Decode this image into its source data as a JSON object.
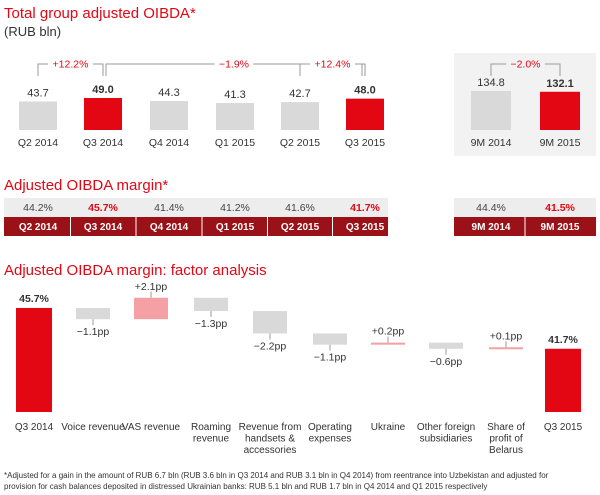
{
  "colors": {
    "accent": "#e30613",
    "grey": "#d9d9d9",
    "dark_red": "#9b1118",
    "pink": "#f4a0a4",
    "strip": "#ededed"
  },
  "chart_data": [
    {
      "type": "bar",
      "title": "Total group adjusted OIBDA*",
      "subtitle": "(RUB bln)",
      "categories": [
        "Q2 2014",
        "Q3 2014",
        "Q4 2014",
        "Q1 2015",
        "Q2 2015",
        "Q3 2015"
      ],
      "values": [
        43.7,
        49.0,
        44.3,
        41.3,
        42.7,
        48.0
      ],
      "highlight": [
        "Q3 2014",
        "Q3 2015"
      ],
      "changes": [
        {
          "from": "Q2 2014",
          "to": "Q3 2014",
          "label": "+12.2%"
        },
        {
          "from": "Q3 2014",
          "to": "Q3 2015",
          "label": "−1.9%"
        },
        {
          "from": "Q2 2015",
          "to": "Q3 2015",
          "label": "+12.4%"
        }
      ],
      "nine_month": {
        "categories": [
          "9M 2014",
          "9M 2015"
        ],
        "values": [
          134.8,
          132.1
        ],
        "change": "−2.0%"
      }
    },
    {
      "type": "table",
      "title": "Adjusted OIBDA margin*",
      "categories": [
        "Q2 2014",
        "Q3 2014",
        "Q4 2014",
        "Q1 2015",
        "Q2 2015",
        "Q3 2015"
      ],
      "values": [
        "44.2%",
        "45.7%",
        "41.4%",
        "41.2%",
        "41.6%",
        "41.7%"
      ],
      "highlight": [
        "Q3 2014",
        "Q3 2015"
      ],
      "nine_month": {
        "categories": [
          "9M 2014",
          "9M 2015"
        ],
        "values": [
          "44.4%",
          "41.5%"
        ]
      }
    },
    {
      "type": "bar",
      "subtype": "waterfall",
      "title": "Adjusted OIBDA margin: factor analysis",
      "steps": [
        {
          "label": "Q3 2014",
          "value": 45.7,
          "kind": "total",
          "text": "45.7%"
        },
        {
          "label": "Voice revenue",
          "value": -1.1,
          "kind": "delta",
          "text": "−1.1pp"
        },
        {
          "label": "VAS revenue",
          "value": 2.1,
          "kind": "delta",
          "text": "+2.1pp"
        },
        {
          "label": "Roaming revenue",
          "value": -1.3,
          "kind": "delta",
          "text": "−1.3pp"
        },
        {
          "label": "Revenue from handsets & accessories",
          "value": -2.2,
          "kind": "delta",
          "text": "−2.2pp"
        },
        {
          "label": "Operating expenses",
          "value": -1.1,
          "kind": "delta",
          "text": "−1.1pp"
        },
        {
          "label": "Ukraine",
          "value": 0.2,
          "kind": "delta",
          "text": "+0.2pp"
        },
        {
          "label": "Other foreign subsidiaries",
          "value": -0.6,
          "kind": "delta",
          "text": "−0.6pp"
        },
        {
          "label": "Share of profit of Belarus",
          "value": 0.1,
          "kind": "delta",
          "text": "+0.1pp"
        },
        {
          "label": "Q3 2015",
          "value": 41.7,
          "kind": "total",
          "text": "41.7%"
        }
      ]
    }
  ],
  "footnote": {
    "line1": "*Adjusted for a gain in the amount of RUB 6.7 bln (RUB 3.6 bln in Q3 2014 and RUB 3.1 bln in Q4 2014)  from reentrance into Uzbekistan and adjusted for",
    "line2": "provision for cash balances deposited in distressed Ukrainian banks: RUB 5.1 bln and RUB 1.7 bln in Q4 2014 and Q1 2015 respectively"
  }
}
